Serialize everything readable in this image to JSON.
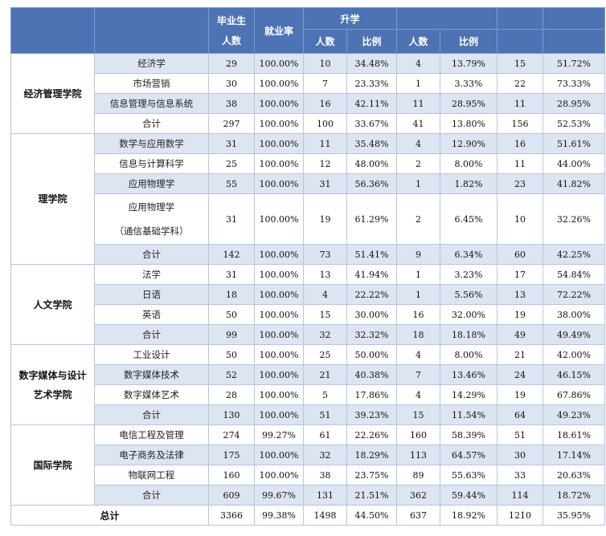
{
  "header": {
    "col_college": "",
    "col_major": "",
    "graduates_line1": "毕业生",
    "graduates_line2": "人数",
    "employment_rate": "就业率",
    "further_study": "升学",
    "sub_count": "人数",
    "sub_ratio": "比例",
    "sub_count_2": "人数",
    "sub_ratio_2": "比例",
    "group3": "",
    "group4": "",
    "group4_sub": ""
  },
  "colleges": [
    {
      "name": "经济管理学院",
      "rows": [
        {
          "major": "经济学",
          "graduates": "29",
          "rate": "100.00%",
          "c1": "10",
          "p1": "34.48%",
          "c2": "4",
          "p2": "13.79%",
          "c3": "15",
          "p3": "51.72%"
        },
        {
          "major": "市场营销",
          "graduates": "30",
          "rate": "100.00%",
          "c1": "7",
          "p1": "23.33%",
          "c2": "1",
          "p2": "3.33%",
          "c3": "22",
          "p3": "73.33%"
        },
        {
          "major": "信息管理与信息系统",
          "graduates": "38",
          "rate": "100.00%",
          "c1": "16",
          "p1": "42.11%",
          "c2": "11",
          "p2": "28.95%",
          "c3": "11",
          "p3": "28.95%"
        },
        {
          "major": "合计",
          "graduates": "297",
          "rate": "100.00%",
          "c1": "100",
          "p1": "33.67%",
          "c2": "41",
          "p2": "13.80%",
          "c3": "156",
          "p3": "52.53%"
        }
      ]
    },
    {
      "name": "理学院",
      "rows": [
        {
          "major": "数学与应用数学",
          "graduates": "31",
          "rate": "100.00%",
          "c1": "11",
          "p1": "35.48%",
          "c2": "4",
          "p2": "12.90%",
          "c3": "16",
          "p3": "51.61%"
        },
        {
          "major": "信息与计算科学",
          "graduates": "25",
          "rate": "100.00%",
          "c1": "12",
          "p1": "48.00%",
          "c2": "2",
          "p2": "8.00%",
          "c3": "11",
          "p3": "44.00%"
        },
        {
          "major": "应用物理学",
          "graduates": "55",
          "rate": "100.00%",
          "c1": "31",
          "p1": "56.36%",
          "c2": "1",
          "p2": "1.82%",
          "c3": "23",
          "p3": "41.82%"
        },
        {
          "major": "应用物理学",
          "major2": "（通信基础学科）",
          "graduates": "31",
          "rate": "100.00%",
          "c1": "19",
          "p1": "61.29%",
          "c2": "2",
          "p2": "6.45%",
          "c3": "10",
          "p3": "32.26%"
        },
        {
          "major": "合计",
          "graduates": "142",
          "rate": "100.00%",
          "c1": "73",
          "p1": "51.41%",
          "c2": "9",
          "p2": "6.34%",
          "c3": "60",
          "p3": "42.25%"
        }
      ]
    },
    {
      "name": "人文学院",
      "rows": [
        {
          "major": "法学",
          "graduates": "31",
          "rate": "100.00%",
          "c1": "13",
          "p1": "41.94%",
          "c2": "1",
          "p2": "3.23%",
          "c3": "17",
          "p3": "54.84%"
        },
        {
          "major": "日语",
          "graduates": "18",
          "rate": "100.00%",
          "c1": "4",
          "p1": "22.22%",
          "c2": "1",
          "p2": "5.56%",
          "c3": "13",
          "p3": "72.22%"
        },
        {
          "major": "英语",
          "graduates": "50",
          "rate": "100.00%",
          "c1": "15",
          "p1": "30.00%",
          "c2": "16",
          "p2": "32.00%",
          "c3": "19",
          "p3": "38.00%"
        },
        {
          "major": "合计",
          "graduates": "99",
          "rate": "100.00%",
          "c1": "32",
          "p1": "32.32%",
          "c2": "18",
          "p2": "18.18%",
          "c3": "49",
          "p3": "49.49%"
        }
      ]
    },
    {
      "name": "数字媒体与设计",
      "name2": "艺术学院",
      "rows": [
        {
          "major": "工业设计",
          "graduates": "50",
          "rate": "100.00%",
          "c1": "25",
          "p1": "50.00%",
          "c2": "4",
          "p2": "8.00%",
          "c3": "21",
          "p3": "42.00%"
        },
        {
          "major": "数字媒体技术",
          "graduates": "52",
          "rate": "100.00%",
          "c1": "21",
          "p1": "40.38%",
          "c2": "7",
          "p2": "13.46%",
          "c3": "24",
          "p3": "46.15%"
        },
        {
          "major": "数字媒体艺术",
          "graduates": "28",
          "rate": "100.00%",
          "c1": "5",
          "p1": "17.86%",
          "c2": "4",
          "p2": "14.29%",
          "c3": "19",
          "p3": "67.86%"
        },
        {
          "major": "合计",
          "graduates": "130",
          "rate": "100.00%",
          "c1": "51",
          "p1": "39.23%",
          "c2": "15",
          "p2": "11.54%",
          "c3": "64",
          "p3": "49.23%"
        }
      ]
    },
    {
      "name": "国际学院",
      "rows": [
        {
          "major": "电信工程及管理",
          "graduates": "274",
          "rate": "99.27%",
          "c1": "61",
          "p1": "22.26%",
          "c2": "160",
          "p2": "58.39%",
          "c3": "51",
          "p3": "18.61%"
        },
        {
          "major": "电子商务及法律",
          "graduates": "175",
          "rate": "100.00%",
          "c1": "32",
          "p1": "18.29%",
          "c2": "113",
          "p2": "64.57%",
          "c3": "30",
          "p3": "17.14%"
        },
        {
          "major": "物联网工程",
          "graduates": "160",
          "rate": "100.00%",
          "c1": "38",
          "p1": "23.75%",
          "c2": "89",
          "p2": "55.63%",
          "c3": "33",
          "p3": "20.63%"
        },
        {
          "major": "合计",
          "graduates": "609",
          "rate": "99.67%",
          "c1": "131",
          "p1": "21.51%",
          "c2": "362",
          "p2": "59.44%",
          "c3": "114",
          "p3": "18.72%"
        }
      ]
    }
  ],
  "total": {
    "label": "总计",
    "graduates": "3366",
    "rate": "99.38%",
    "c1": "1498",
    "p1": "44.50%",
    "c2": "637",
    "p2": "18.92%",
    "c3": "1210",
    "p3": "35.95%"
  }
}
